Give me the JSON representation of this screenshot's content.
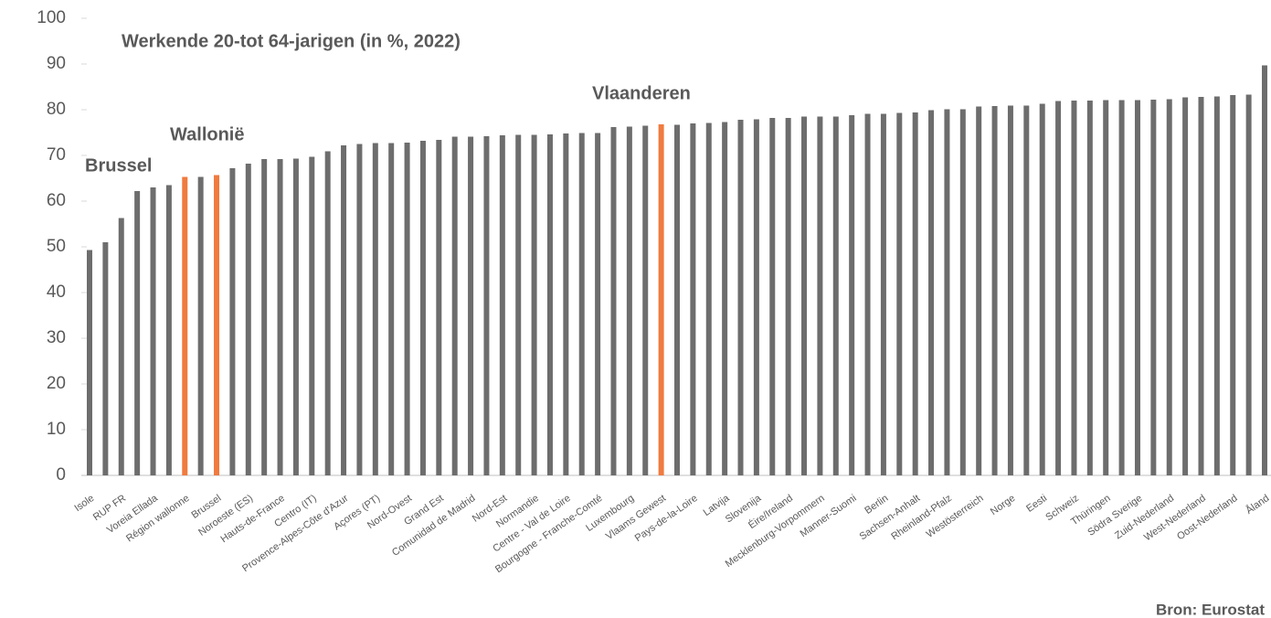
{
  "chart_data": {
    "type": "bar",
    "title": "Werkende 20-tot 64-jarigen (in %, 2022)",
    "source": "Bron: Eurostat",
    "annotations": [
      "Brussel",
      "Wallonië",
      "Vlaanderen"
    ],
    "categories": [
      "Isole",
      null,
      "RUP FR",
      null,
      "Voreia Ellada",
      null,
      "Région wallonne",
      null,
      "Brussel",
      null,
      "Noroeste (ES)",
      null,
      "Hauts-de-France",
      null,
      "Centro (IT)",
      null,
      "Provence-Alpes-Côte d'Azur",
      null,
      "Açores (PT)",
      null,
      "Nord-Ovest",
      null,
      "Grand Est",
      null,
      "Comunidad de Madrid",
      null,
      "Nord-Est",
      null,
      "Normandie",
      null,
      "Centre - Val de Loire",
      null,
      "Bourgogne - Franche-Comté",
      null,
      "Luxembourg",
      null,
      "Vlaams Gewest",
      null,
      "Pays-de-la-Loire",
      null,
      "Latvija",
      null,
      "Slovenija",
      null,
      "Éire/Ireland",
      null,
      "Mecklenburg-Vorpommern",
      null,
      "Manner-Suomi",
      null,
      "Berlin",
      null,
      "Sachsen-Anhalt",
      null,
      "Rheinland-Pfalz",
      null,
      "Westösterreich",
      null,
      "Norge",
      null,
      "Eesti",
      null,
      "Schweiz",
      null,
      "Thüringen",
      null,
      "Södra Sverige",
      null,
      "Zuid-Nederland",
      null,
      "West-Nederland",
      null,
      "Oost-Nederland",
      null,
      "Åland"
    ],
    "values": [
      49.3,
      51,
      56.3,
      62.2,
      63,
      63.5,
      65.3,
      65.3,
      65.7,
      67.2,
      68.2,
      69.2,
      69.2,
      69.3,
      69.7,
      70.9,
      72.2,
      72.5,
      72.7,
      72.7,
      72.8,
      73.2,
      73.4,
      74.1,
      74.1,
      74.2,
      74.4,
      74.5,
      74.5,
      74.6,
      74.8,
      74.9,
      74.9,
      76.2,
      76.3,
      76.5,
      76.8,
      76.7,
      77.0,
      77.1,
      77.3,
      77.8,
      77.9,
      78.2,
      78.2,
      78.5,
      78.5,
      78.5,
      78.8,
      79.1,
      79.1,
      79.3,
      79.4,
      79.9,
      80.1,
      80.1,
      80.7,
      80.8,
      80.9,
      80.9,
      81.3,
      81.9,
      82.0,
      82.0,
      82.1,
      82.1,
      82.1,
      82.2,
      82.3,
      82.7,
      82.8,
      82.9,
      83.2,
      83.3,
      89.7
    ],
    "color": "#6d6d6d",
    "highlight_color": "#f07b3f",
    "highlight": [
      6,
      8,
      36
    ],
    "ylim": [
      0,
      100
    ],
    "yticks": [
      0,
      10,
      20,
      30,
      40,
      50,
      60,
      70,
      80,
      90,
      100
    ],
    "grid": false
  }
}
